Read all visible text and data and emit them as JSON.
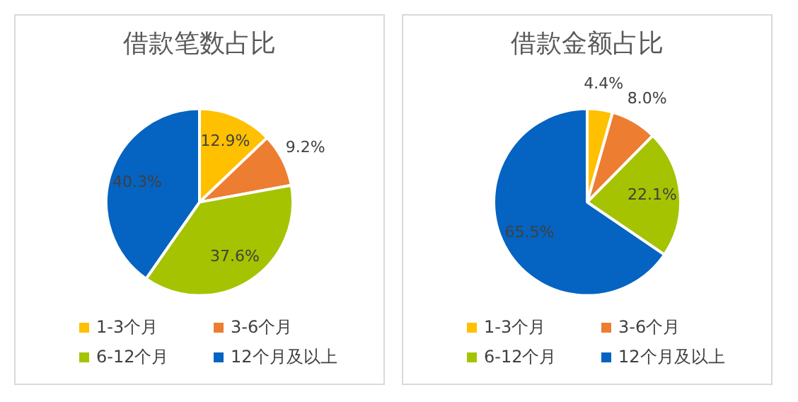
{
  "chart_data": [
    {
      "type": "pie",
      "title": "借款笔数占比",
      "categories": [
        "1-3个月",
        "3-6个月",
        "6-12个月",
        "12个月及以上"
      ],
      "values": [
        12.9,
        9.2,
        37.6,
        40.3
      ],
      "colors": [
        "#ffc000",
        "#ed7d31",
        "#a5c300",
        "#0563c1"
      ],
      "value_labels": [
        "12.9%",
        "9.2%",
        "37.6%",
        "40.3%"
      ],
      "legend": "bottom"
    },
    {
      "type": "pie",
      "title": "借款金额占比",
      "categories": [
        "1-3个月",
        "3-6个月",
        "6-12个月",
        "12个月及以上"
      ],
      "values": [
        4.4,
        8.0,
        22.1,
        65.5
      ],
      "colors": [
        "#ffc000",
        "#ed7d31",
        "#a5c300",
        "#0563c1"
      ],
      "value_labels": [
        "4.4%",
        "8.0%",
        "22.1%",
        "65.5%"
      ],
      "legend": "bottom"
    }
  ]
}
